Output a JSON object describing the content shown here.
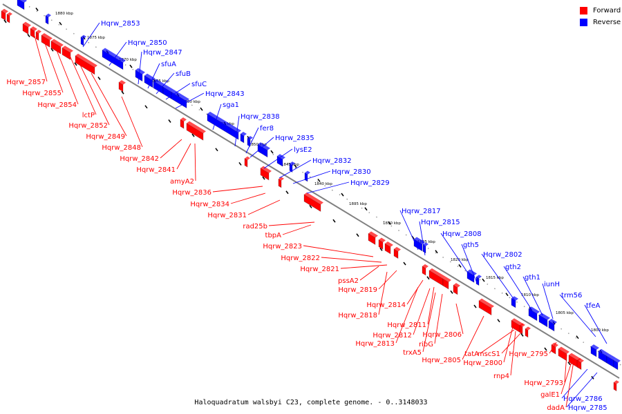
{
  "legend": {
    "forward_label": "Forward",
    "reverse_label": "Reverse",
    "forward_color": "#ff0000",
    "reverse_color": "#0000ff"
  },
  "colors": {
    "forward": "#ff0000",
    "reverse": "#0000ff",
    "backbone": "#808080",
    "ticks": "#000000"
  },
  "caption": "Haloquadratum walsbyi C23, complete genome. - 0..3148033",
  "scale": {
    "tick_labels": [
      "1880 kbp",
      "1875 kbp",
      "1870 kbp",
      "1865 kbp",
      "1860 kbp",
      "1855 kbp",
      "1850 kbp",
      "1845 kbp",
      "1840 kbp",
      "1835 kbp",
      "1830 kbp",
      "1825 kbp",
      "1820 kbp",
      "1815 kbp",
      "1810 kbp",
      "1805 kbp",
      "1800 kbp"
    ]
  },
  "genes": {
    "reverse": [
      "Hqrw_2853",
      "Hqrw_2850",
      "Hqrw_2847",
      "sfuA",
      "sfuB",
      "sfuC",
      "Hqrw_2843",
      "sga1",
      "Hqrw_2838",
      "fer8",
      "Hqrw_2835",
      "lysE2",
      "Hqrw_2832",
      "Hqrw_2830",
      "Hqrw_2829",
      "Hqrw_2817",
      "Hqrw_2815",
      "Hqrw_2808",
      "gth5",
      "Hqrw_2802",
      "gth2",
      "gth1",
      "iunH",
      "trm56",
      "tfeA",
      "Hqrw_2786",
      "Hqrw_2785"
    ],
    "forward": [
      "Hqrw_2857",
      "Hqrw_2855",
      "Hqrw_2854",
      "lctP",
      "Hqrw_2852",
      "Hqrw_2849",
      "Hqrw_2848",
      "Hqrw_2842",
      "Hqrw_2841",
      "amyA2",
      "Hqrw_2836",
      "Hqrw_2834",
      "Hqrw_2831",
      "rad25b",
      "tbpA",
      "Hqrw_2823",
      "Hqrw_2822",
      "Hqrw_2821",
      "pssA2",
      "Hqrw_2819",
      "Hqrw_2814",
      "Hqrw_2818",
      "Hqrw_2811",
      "Hqrw_2812",
      "Hqrw_2813",
      "Hqrw_2806",
      "ribG",
      "trxA5",
      "Hqrw_2805",
      "tatA",
      "mscS1",
      "Hqrw_2800",
      "rnp4",
      "Hqrw_2795",
      "Hqrw_2793",
      "galE1",
      "dadA"
    ]
  }
}
